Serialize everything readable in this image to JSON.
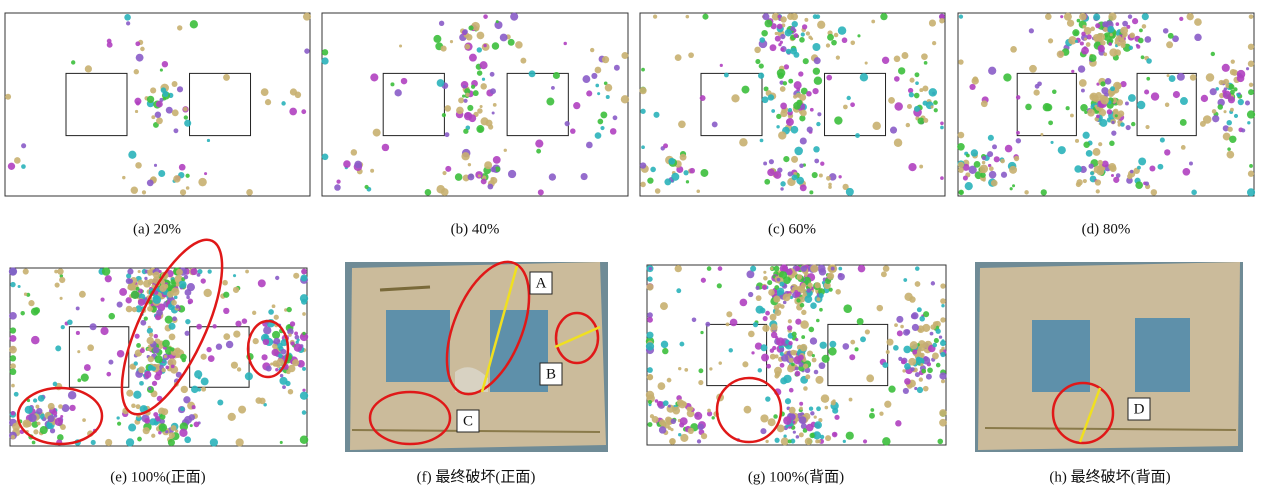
{
  "panels": [
    {
      "caption": "(a) 20%"
    },
    {
      "caption": "(b) 40%"
    },
    {
      "caption": "(c) 60%"
    },
    {
      "caption": "(d) 80%"
    },
    {
      "caption": "(e) 100%(正面)"
    },
    {
      "caption": "(f)  最终破坏(正面)",
      "labels": [
        "A",
        "B",
        "C"
      ]
    },
    {
      "caption": "(g) 100%(背面)"
    },
    {
      "caption": "(h)  最终破坏(背面)",
      "labels": [
        "D"
      ]
    }
  ]
}
